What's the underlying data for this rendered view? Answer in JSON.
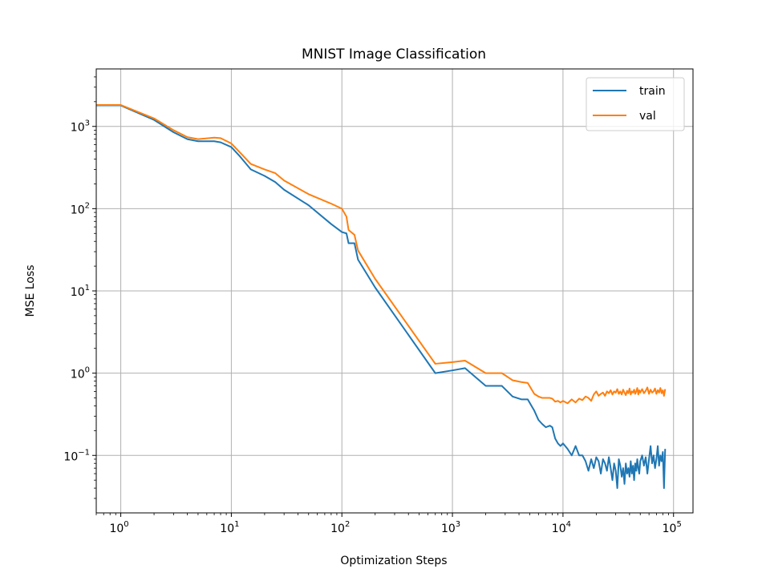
{
  "chart_data": {
    "type": "line",
    "title": "MNIST Image Classification",
    "xlabel": "Optimization Steps",
    "ylabel": "MSE Loss",
    "xscale": "log",
    "yscale": "log",
    "xlim": [
      0.6,
      150000
    ],
    "ylim": [
      0.02,
      5000
    ],
    "grid": true,
    "legend_position": "top-right",
    "x_ticks": [
      {
        "base": "10",
        "exp": "0",
        "value": 1
      },
      {
        "base": "10",
        "exp": "1",
        "value": 10
      },
      {
        "base": "10",
        "exp": "2",
        "value": 100
      },
      {
        "base": "10",
        "exp": "3",
        "value": 1000
      },
      {
        "base": "10",
        "exp": "4",
        "value": 10000
      },
      {
        "base": "10",
        "exp": "5",
        "value": 100000
      }
    ],
    "y_ticks": [
      {
        "base": "10",
        "exp": "−1",
        "value": 0.1
      },
      {
        "base": "10",
        "exp": "0",
        "value": 1
      },
      {
        "base": "10",
        "exp": "1",
        "value": 10
      },
      {
        "base": "10",
        "exp": "2",
        "value": 100
      },
      {
        "base": "10",
        "exp": "3",
        "value": 1000
      }
    ],
    "series": [
      {
        "name": "train",
        "color": "#1f77b4",
        "points": [
          [
            0.6,
            1800
          ],
          [
            1,
            1800
          ],
          [
            2,
            1200
          ],
          [
            3,
            850
          ],
          [
            4,
            700
          ],
          [
            5,
            660
          ],
          [
            7,
            660
          ],
          [
            8,
            640
          ],
          [
            10,
            560
          ],
          [
            12,
            430
          ],
          [
            15,
            300
          ],
          [
            20,
            250
          ],
          [
            25,
            210
          ],
          [
            30,
            170
          ],
          [
            50,
            110
          ],
          [
            80,
            65
          ],
          [
            100,
            52
          ],
          [
            110,
            50
          ],
          [
            115,
            38
          ],
          [
            130,
            38
          ],
          [
            140,
            24
          ],
          [
            200,
            11
          ],
          [
            700,
            1.0
          ],
          [
            1000,
            1.08
          ],
          [
            1300,
            1.15
          ],
          [
            2000,
            0.7
          ],
          [
            2800,
            0.7
          ],
          [
            3500,
            0.52
          ],
          [
            4200,
            0.48
          ],
          [
            4800,
            0.48
          ],
          [
            5500,
            0.35
          ],
          [
            6000,
            0.27
          ],
          [
            6500,
            0.24
          ],
          [
            7000,
            0.22
          ],
          [
            7600,
            0.23
          ],
          [
            8000,
            0.22
          ],
          [
            8500,
            0.16
          ],
          [
            9000,
            0.14
          ],
          [
            9500,
            0.13
          ],
          [
            10000,
            0.14
          ],
          [
            11000,
            0.12
          ],
          [
            12000,
            0.1
          ],
          [
            13000,
            0.13
          ],
          [
            14000,
            0.1
          ],
          [
            15000,
            0.1
          ],
          [
            16000,
            0.085
          ],
          [
            17000,
            0.065
          ],
          [
            18000,
            0.09
          ],
          [
            19000,
            0.07
          ],
          [
            20000,
            0.095
          ],
          [
            21000,
            0.085
          ],
          [
            22000,
            0.06
          ],
          [
            23000,
            0.09
          ],
          [
            24000,
            0.08
          ],
          [
            25000,
            0.065
          ],
          [
            26000,
            0.095
          ],
          [
            27000,
            0.07
          ],
          [
            28000,
            0.05
          ],
          [
            29000,
            0.08
          ],
          [
            30000,
            0.065
          ],
          [
            31000,
            0.04
          ],
          [
            32000,
            0.09
          ],
          [
            33000,
            0.075
          ],
          [
            34000,
            0.055
          ],
          [
            35000,
            0.07
          ],
          [
            36000,
            0.045
          ],
          [
            37000,
            0.08
          ],
          [
            38000,
            0.06
          ],
          [
            39000,
            0.07
          ],
          [
            40000,
            0.055
          ],
          [
            41000,
            0.085
          ],
          [
            42000,
            0.06
          ],
          [
            43000,
            0.075
          ],
          [
            44000,
            0.05
          ],
          [
            45000,
            0.08
          ],
          [
            46000,
            0.065
          ],
          [
            47000,
            0.09
          ],
          [
            48000,
            0.07
          ],
          [
            49000,
            0.06
          ],
          [
            50000,
            0.085
          ],
          [
            52000,
            0.1
          ],
          [
            54000,
            0.075
          ],
          [
            56000,
            0.095
          ],
          [
            58000,
            0.06
          ],
          [
            60000,
            0.09
          ],
          [
            62000,
            0.13
          ],
          [
            64000,
            0.08
          ],
          [
            66000,
            0.1
          ],
          [
            68000,
            0.07
          ],
          [
            70000,
            0.09
          ],
          [
            72000,
            0.13
          ],
          [
            74000,
            0.075
          ],
          [
            76000,
            0.1
          ],
          [
            78000,
            0.085
          ],
          [
            80000,
            0.11
          ],
          [
            82000,
            0.04
          ],
          [
            84000,
            0.12
          ]
        ]
      },
      {
        "name": "val",
        "color": "#ff7f0e",
        "points": [
          [
            0.6,
            1820
          ],
          [
            1,
            1820
          ],
          [
            2,
            1250
          ],
          [
            3,
            900
          ],
          [
            4,
            740
          ],
          [
            5,
            700
          ],
          [
            7,
            730
          ],
          [
            8,
            720
          ],
          [
            10,
            620
          ],
          [
            12,
            480
          ],
          [
            15,
            350
          ],
          [
            20,
            300
          ],
          [
            25,
            270
          ],
          [
            30,
            220
          ],
          [
            50,
            150
          ],
          [
            80,
            115
          ],
          [
            100,
            100
          ],
          [
            110,
            80
          ],
          [
            115,
            55
          ],
          [
            130,
            48
          ],
          [
            140,
            31
          ],
          [
            200,
            14
          ],
          [
            700,
            1.3
          ],
          [
            1000,
            1.36
          ],
          [
            1300,
            1.42
          ],
          [
            2000,
            1.0
          ],
          [
            2800,
            1.0
          ],
          [
            3500,
            0.82
          ],
          [
            4200,
            0.78
          ],
          [
            4800,
            0.76
          ],
          [
            5500,
            0.56
          ],
          [
            6000,
            0.52
          ],
          [
            6500,
            0.5
          ],
          [
            7000,
            0.5
          ],
          [
            7600,
            0.5
          ],
          [
            8000,
            0.49
          ],
          [
            8500,
            0.45
          ],
          [
            9000,
            0.46
          ],
          [
            9500,
            0.44
          ],
          [
            10000,
            0.46
          ],
          [
            11000,
            0.43
          ],
          [
            12000,
            0.48
          ],
          [
            13000,
            0.44
          ],
          [
            14000,
            0.49
          ],
          [
            15000,
            0.47
          ],
          [
            16000,
            0.52
          ],
          [
            17000,
            0.5
          ],
          [
            18000,
            0.46
          ],
          [
            19000,
            0.55
          ],
          [
            20000,
            0.6
          ],
          [
            21000,
            0.53
          ],
          [
            22000,
            0.56
          ],
          [
            23000,
            0.58
          ],
          [
            24000,
            0.53
          ],
          [
            25000,
            0.6
          ],
          [
            26000,
            0.57
          ],
          [
            27000,
            0.62
          ],
          [
            28000,
            0.55
          ],
          [
            29000,
            0.6
          ],
          [
            30000,
            0.58
          ],
          [
            31000,
            0.64
          ],
          [
            32000,
            0.56
          ],
          [
            33000,
            0.6
          ],
          [
            34000,
            0.55
          ],
          [
            35000,
            0.63
          ],
          [
            36000,
            0.58
          ],
          [
            37000,
            0.54
          ],
          [
            38000,
            0.61
          ],
          [
            39000,
            0.57
          ],
          [
            40000,
            0.65
          ],
          [
            41000,
            0.55
          ],
          [
            42000,
            0.6
          ],
          [
            43000,
            0.58
          ],
          [
            44000,
            0.63
          ],
          [
            45000,
            0.56
          ],
          [
            46000,
            0.6
          ],
          [
            47000,
            0.66
          ],
          [
            48000,
            0.55
          ],
          [
            49000,
            0.62
          ],
          [
            50000,
            0.58
          ],
          [
            52000,
            0.64
          ],
          [
            54000,
            0.57
          ],
          [
            56000,
            0.61
          ],
          [
            58000,
            0.67
          ],
          [
            60000,
            0.56
          ],
          [
            62000,
            0.63
          ],
          [
            64000,
            0.58
          ],
          [
            66000,
            0.6
          ],
          [
            68000,
            0.65
          ],
          [
            70000,
            0.56
          ],
          [
            72000,
            0.62
          ],
          [
            74000,
            0.58
          ],
          [
            76000,
            0.66
          ],
          [
            78000,
            0.57
          ],
          [
            80000,
            0.62
          ],
          [
            82000,
            0.53
          ],
          [
            84000,
            0.64
          ]
        ]
      }
    ]
  }
}
